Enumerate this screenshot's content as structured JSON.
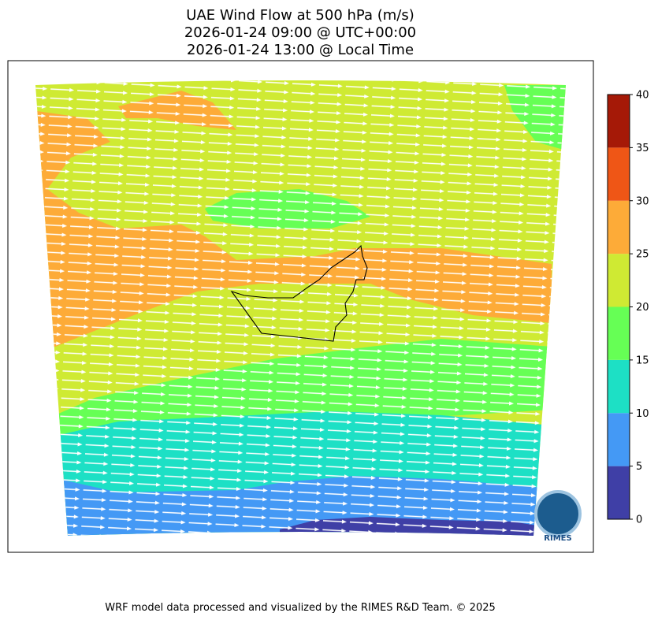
{
  "title": [
    "UAE Wind Flow at 500 hPa (m/s)",
    "2026-01-24 09:00 @ UTC+00:00",
    "2026-01-24 13:00 @ Local Time"
  ],
  "colorbar": {
    "levels": [
      0,
      5,
      10,
      15,
      20,
      25,
      30,
      35,
      40
    ],
    "colors": [
      "#3f3fa6",
      "#4499f5",
      "#1de0c5",
      "#66ff55",
      "#cfea33",
      "#fdab38",
      "#ef5616",
      "#a51907"
    ]
  },
  "logo": "RIMES",
  "footer": "WRF model data processed and visualized by the RIMES R&D Team. © 2025"
}
